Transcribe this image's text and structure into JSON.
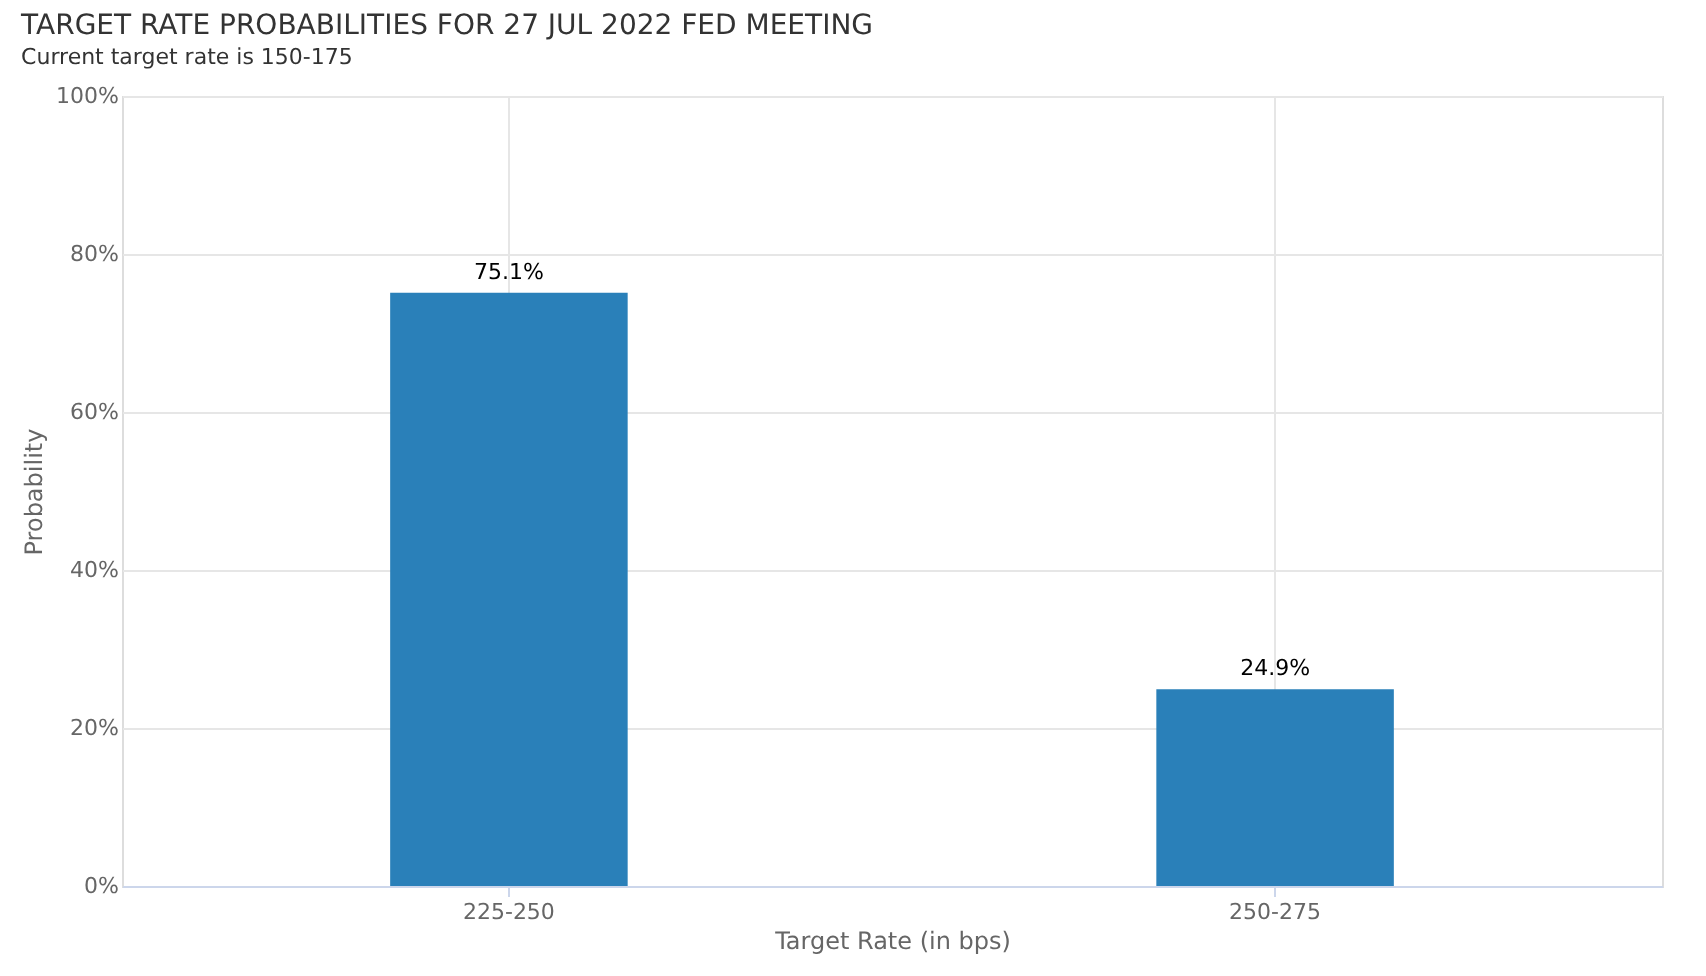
{
  "chart_data": {
    "type": "bar",
    "title": "TARGET RATE PROBABILITIES FOR 27 JUL 2022 FED MEETING",
    "subtitle": "Current target rate is 150-175",
    "xlabel": "Target Rate (in bps)",
    "ylabel": "Probability",
    "categories": [
      "225-250",
      "250-275"
    ],
    "series": [
      {
        "color": "#2a80b9",
        "values": [
          75.1,
          24.9
        ],
        "value_labels": [
          "75.1%",
          "24.9%"
        ]
      }
    ],
    "ylim": [
      0,
      100
    ],
    "yticks": [
      {
        "value": 0,
        "label": "0%"
      },
      {
        "value": 20,
        "label": "20%"
      },
      {
        "value": 40,
        "label": "40%"
      },
      {
        "value": 60,
        "label": "60%"
      },
      {
        "value": 80,
        "label": "80%"
      },
      {
        "value": 100,
        "label": "100%"
      }
    ],
    "grid": true
  }
}
